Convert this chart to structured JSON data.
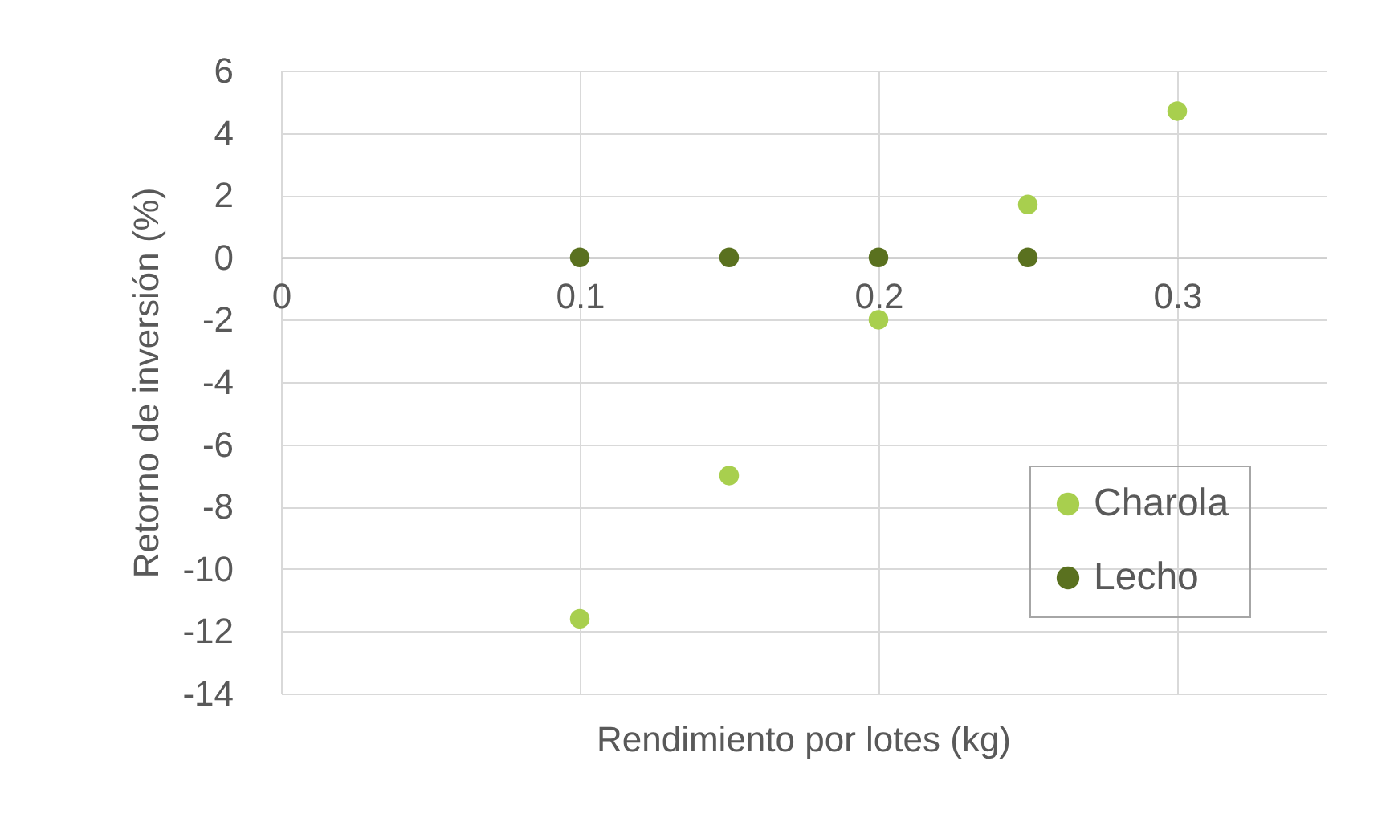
{
  "chart_data": {
    "type": "scatter",
    "xlabel": "Rendimiento por lotes (kg)",
    "ylabel": "Retorno de inversión (%)",
    "series": [
      {
        "name": "Charola",
        "color": "#a8cf4e",
        "x": [
          0.1,
          0.15,
          0.2,
          0.25,
          0.3
        ],
        "values": [
          -11.6,
          -7.0,
          -2.0,
          1.7,
          4.7
        ]
      },
      {
        "name": "Lecho",
        "color": "#5a711f",
        "x": [
          0.1,
          0.15,
          0.2,
          0.25
        ],
        "values": [
          0,
          0,
          0,
          0
        ]
      }
    ],
    "xlim": [
      0,
      0.35
    ],
    "xticks": [
      0,
      0.1,
      0.2,
      0.3
    ],
    "ylim": [
      -14,
      6
    ],
    "yticks": [
      -14,
      -12,
      -10,
      -8,
      -6,
      -4,
      -2,
      0,
      2,
      4,
      6
    ],
    "grid": true,
    "legend": "bottom right",
    "marker": "circle"
  }
}
